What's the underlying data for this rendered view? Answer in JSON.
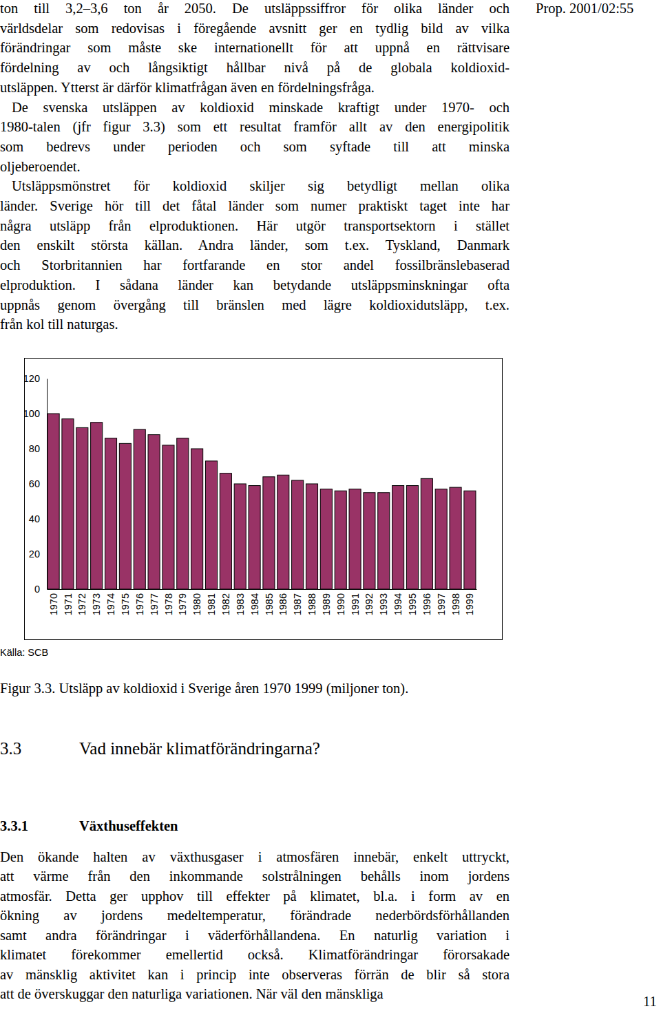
{
  "header": {
    "running_title": "Prop. 2001/02:55",
    "page_number": "11"
  },
  "body": {
    "paragraphs": [
      [
        "ton till 3,2–3,6 ton år 2050. De utsläppssiffror för olika länder och",
        "världsdelar som redovisas i föregående avsnitt ger en tydlig bild av vilka",
        "förändringar som måste ske internationellt för att uppnå en rättvisare",
        "fördelning av och långsiktigt hållbar nivå på de globala koldioxid-",
        "utsläppen. Ytterst är därför klimatfrågan även en fördelningsfråga."
      ],
      [
        "De svenska utsläppen av koldioxid minskade kraftigt under 1970- och",
        "1980-talen (jfr figur 3.3) som ett resultat framför allt av den energipolitik",
        "som bedrevs under perioden och som syftade till att minska",
        "oljeberoendet."
      ],
      [
        "Utsläppsmönstret för koldioxid skiljer sig betydligt mellan olika",
        "länder. Sverige hör till det fåtal länder som numer praktiskt taget inte har",
        "några utsläpp från elproduktionen. Här utgör transportsektorn i stället",
        "den enskilt största källan. Andra länder, som t.ex. Tyskland, Danmark",
        "och Storbritannien har fortfarande en stor andel fossilbränslebaserad",
        "elproduktion. I sådana länder kan betydande utsläppsminskningar ofta",
        "uppnås genom övergång till bränslen med lägre koldioxidutsläpp, t.ex.",
        "från kol till naturgas."
      ]
    ]
  },
  "chart_data": {
    "type": "bar",
    "title": "Figur 3.3. Utsläpp av koldioxid i Sverige åren 1970 1999 (miljoner ton).",
    "source": "Källa: SCB",
    "categories": [
      "1970",
      "1971",
      "1972",
      "1973",
      "1974",
      "1975",
      "1976",
      "1977",
      "1978",
      "1979",
      "1980",
      "1981",
      "1982",
      "1983",
      "1984",
      "1985",
      "1986",
      "1987",
      "1988",
      "1989",
      "1990",
      "1991",
      "1992",
      "1993",
      "1994",
      "1995",
      "1996",
      "1997",
      "1998",
      "1999"
    ],
    "values": [
      100,
      97,
      92,
      95,
      86,
      83,
      91,
      88,
      82,
      86,
      80,
      73,
      66,
      60,
      59,
      64,
      65,
      62,
      60,
      57,
      56,
      57,
      55,
      55,
      59,
      59,
      63,
      57,
      58,
      56
    ],
    "color": "#993366",
    "ylim": [
      0,
      120
    ],
    "yticks": [
      0,
      20,
      40,
      60,
      80,
      100,
      120
    ],
    "grid": false
  },
  "section": {
    "number": "3.3",
    "title": "Vad innebär klimatförändringarna?"
  },
  "subsection": {
    "number": "3.3.1",
    "title": "Växthuseffekten",
    "paragraphs": [
      [
        "Den ökande halten av växthusgaser i atmosfären innebär, enkelt uttryckt,",
        "att värme från den inkommande solstrålningen behålls inom jordens",
        "atmosfär. Detta ger upphov till effekter på klimatet, bl.a. i form av en",
        "ökning av jordens medeltemperatur, förändrade nederbördsförhållanden",
        "samt andra förändringar i väderförhållandena. En naturlig variation i",
        "klimatet förekommer emellertid också. Klimatförändringar förorsakade",
        "av mänsklig aktivitet kan i princip inte observeras förrän de blir så stora",
        "att de överskuggar den naturliga variationen. När väl den mänskliga"
      ]
    ]
  }
}
